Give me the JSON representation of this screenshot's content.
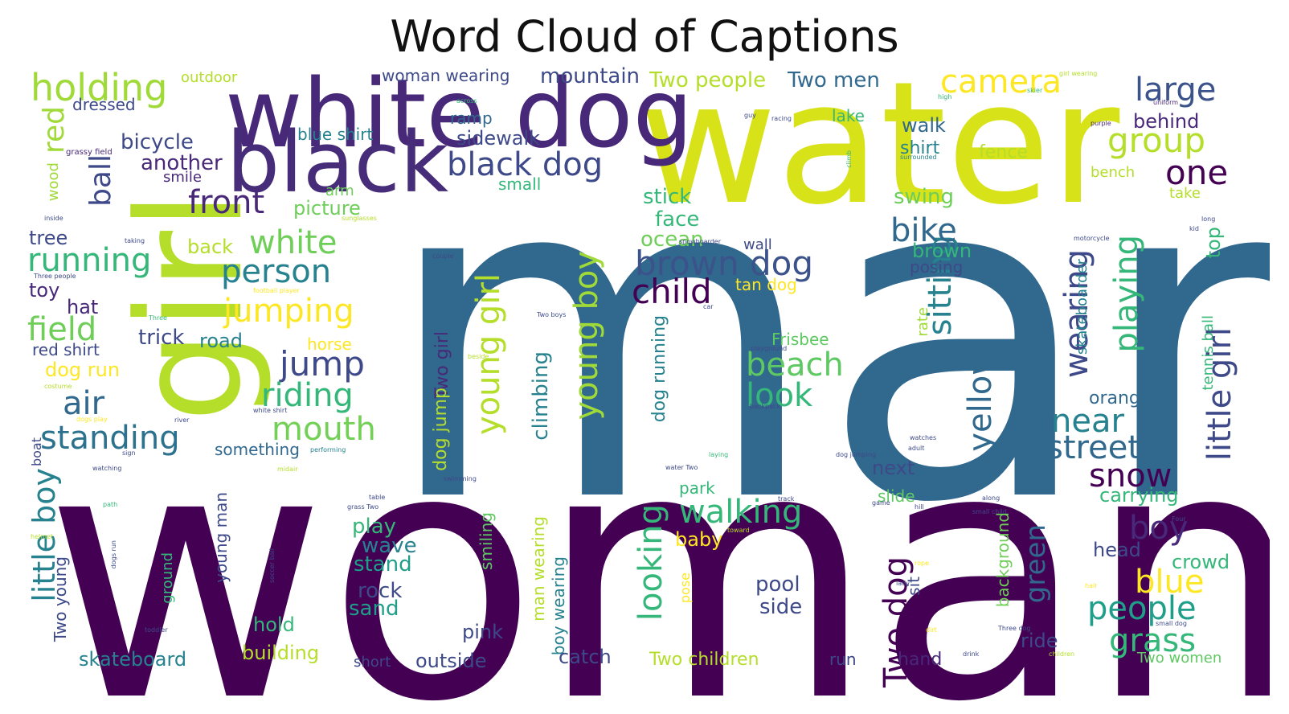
{
  "title": "Word Cloud of Captions",
  "palette": [
    "#440154",
    "#482878",
    "#3e4989",
    "#31688e",
    "#26828e",
    "#1f9e89",
    "#35b779",
    "#6ece58",
    "#b5de2b",
    "#fde725"
  ],
  "words": [
    {
      "text": "man",
      "color": "#31688e"
    },
    {
      "text": "woman",
      "color": "#440154"
    },
    {
      "text": "water",
      "color": "#d8e219"
    },
    {
      "text": "girl",
      "color": "#b5de2b"
    },
    {
      "text": "white dog",
      "color": "#482878"
    },
    {
      "text": "black",
      "color": "#472c7a"
    },
    {
      "text": "holding",
      "color": "#a0da39"
    },
    {
      "text": "camera",
      "color": "#fde725"
    },
    {
      "text": "large",
      "color": "#3b528b"
    },
    {
      "text": "group",
      "color": "#b5de2b"
    },
    {
      "text": "one",
      "color": "#440154"
    },
    {
      "text": "black dog",
      "color": "#3e4989"
    },
    {
      "text": "front",
      "color": "#482878"
    },
    {
      "text": "white",
      "color": "#6ece58"
    },
    {
      "text": "running",
      "color": "#35b779"
    },
    {
      "text": "person",
      "color": "#26828e"
    },
    {
      "text": "jumping",
      "color": "#fde725"
    },
    {
      "text": "brown dog",
      "color": "#3b528b"
    },
    {
      "text": "child",
      "color": "#440154"
    },
    {
      "text": "field",
      "color": "#6ece58"
    },
    {
      "text": "air",
      "color": "#31688e"
    },
    {
      "text": "jump",
      "color": "#3e4989"
    },
    {
      "text": "riding",
      "color": "#35b779"
    },
    {
      "text": "standing",
      "color": "#2c728e"
    },
    {
      "text": "mouth",
      "color": "#73d056"
    },
    {
      "text": "beach",
      "color": "#5ec962"
    },
    {
      "text": "look",
      "color": "#35b779"
    },
    {
      "text": "sitting",
      "color": "#26828e"
    },
    {
      "text": "yellow",
      "color": "#31688e"
    },
    {
      "text": "playing",
      "color": "#35b779"
    },
    {
      "text": "wearing",
      "color": "#3e4989"
    },
    {
      "text": "near",
      "color": "#26828e"
    },
    {
      "text": "street",
      "color": "#31688e"
    },
    {
      "text": "snow",
      "color": "#440154"
    },
    {
      "text": "boy",
      "color": "#482878"
    },
    {
      "text": "blue",
      "color": "#fde725"
    },
    {
      "text": "people",
      "color": "#1f9e89"
    },
    {
      "text": "grass",
      "color": "#35b779"
    },
    {
      "text": "walking",
      "color": "#35b779"
    },
    {
      "text": "looking",
      "color": "#35b779"
    },
    {
      "text": "young boy",
      "color": "#a0da39"
    },
    {
      "text": "young girl",
      "color": "#b5de2b"
    },
    {
      "text": "little boy",
      "color": "#26828e"
    },
    {
      "text": "little girl",
      "color": "#3e4989"
    },
    {
      "text": "Two dog",
      "color": "#440154"
    },
    {
      "text": "bike",
      "color": "#31688e"
    },
    {
      "text": "ball",
      "color": "#3e4989"
    },
    {
      "text": "red",
      "color": "#a0da39"
    },
    {
      "text": "bicycle",
      "color": "#3e4989"
    },
    {
      "text": "another",
      "color": "#482878"
    },
    {
      "text": "mountain",
      "color": "#3e4989"
    },
    {
      "text": "Two people",
      "color": "#b5de2b"
    },
    {
      "text": "Two men",
      "color": "#31688e"
    },
    {
      "text": "sidewalk",
      "color": "#3e4989"
    },
    {
      "text": "picture",
      "color": "#6ece58"
    },
    {
      "text": "face",
      "color": "#35b779"
    },
    {
      "text": "stick",
      "color": "#35b779"
    },
    {
      "text": "ocean",
      "color": "#6ece58"
    },
    {
      "text": "swing",
      "color": "#6ece58"
    },
    {
      "text": "walk",
      "color": "#31688e"
    },
    {
      "text": "shirt",
      "color": "#26828e"
    },
    {
      "text": "fence",
      "color": "#b5de2b"
    },
    {
      "text": "behind",
      "color": "#482878"
    },
    {
      "text": "brown",
      "color": "#35b779"
    },
    {
      "text": "posing",
      "color": "#3e4989"
    },
    {
      "text": "top",
      "color": "#35b779"
    },
    {
      "text": "tree",
      "color": "#3e4989"
    },
    {
      "text": "toy",
      "color": "#482878"
    },
    {
      "text": "hat",
      "color": "#482878"
    },
    {
      "text": "back",
      "color": "#b5de2b"
    },
    {
      "text": "trick",
      "color": "#3e4989"
    },
    {
      "text": "road",
      "color": "#26828e"
    },
    {
      "text": "red shirt",
      "color": "#3e4989"
    },
    {
      "text": "dog run",
      "color": "#fde725"
    },
    {
      "text": "horse",
      "color": "#fde725"
    },
    {
      "text": "blue shirt",
      "color": "#26828e"
    },
    {
      "text": "woman wearing",
      "color": "#3e4989"
    },
    {
      "text": "dressed",
      "color": "#3e4989"
    },
    {
      "text": "smile",
      "color": "#482878"
    },
    {
      "text": "ramp",
      "color": "#31688e"
    },
    {
      "text": "small",
      "color": "#35b779"
    },
    {
      "text": "arm",
      "color": "#6ece58"
    },
    {
      "text": "outdoor",
      "color": "#b5de2b"
    },
    {
      "text": "lake",
      "color": "#35b779"
    },
    {
      "text": "bench",
      "color": "#b5de2b"
    },
    {
      "text": "take",
      "color": "#b5de2b"
    },
    {
      "text": "wood",
      "color": "#a0da39"
    },
    {
      "text": "grassy field",
      "color": "#482878"
    },
    {
      "text": "wall",
      "color": "#3e4989"
    },
    {
      "text": "tan dog",
      "color": "#fde725"
    },
    {
      "text": "Frisbee",
      "color": "#5ec962"
    },
    {
      "text": "rate",
      "color": "#a0da39"
    },
    {
      "text": "around",
      "color": "#31688e"
    },
    {
      "text": "skateboarder",
      "color": "#26828e"
    },
    {
      "text": "orange",
      "color": "#31688e"
    },
    {
      "text": "tennis ball",
      "color": "#35b779"
    },
    {
      "text": "Two girl",
      "color": "#482878"
    },
    {
      "text": "dog jump",
      "color": "#b5de2b"
    },
    {
      "text": "climbing",
      "color": "#26828e"
    },
    {
      "text": "dog running",
      "color": "#26828e"
    },
    {
      "text": "something",
      "color": "#31688e"
    },
    {
      "text": "young man",
      "color": "#3e4989"
    },
    {
      "text": "boat",
      "color": "#3e4989"
    },
    {
      "text": "next",
      "color": "#3e4989"
    },
    {
      "text": "park",
      "color": "#35b779"
    },
    {
      "text": "slide",
      "color": "#5ec962"
    },
    {
      "text": "carrying",
      "color": "#35b779"
    },
    {
      "text": "play",
      "color": "#35b779"
    },
    {
      "text": "wave",
      "color": "#26828e"
    },
    {
      "text": "stand",
      "color": "#1f9e89"
    },
    {
      "text": "rock",
      "color": "#3e4989"
    },
    {
      "text": "sand",
      "color": "#1f9e89"
    },
    {
      "text": "smiling",
      "color": "#5ec962"
    },
    {
      "text": "man wearing",
      "color": "#b5de2b"
    },
    {
      "text": "boy wearing",
      "color": "#26828e"
    },
    {
      "text": "baby",
      "color": "#fde725"
    },
    {
      "text": "pose",
      "color": "#fde725"
    },
    {
      "text": "pool",
      "color": "#3e4989"
    },
    {
      "text": "side",
      "color": "#3e4989"
    },
    {
      "text": "sit",
      "color": "#3e4989"
    },
    {
      "text": "background",
      "color": "#6ece58"
    },
    {
      "text": "green",
      "color": "#31688e"
    },
    {
      "text": "head",
      "color": "#3e4989"
    },
    {
      "text": "crowd",
      "color": "#35b779"
    },
    {
      "text": "hold",
      "color": "#35b779"
    },
    {
      "text": "building",
      "color": "#b5de2b"
    },
    {
      "text": "pink",
      "color": "#3e4989"
    },
    {
      "text": "catch",
      "color": "#3e4989"
    },
    {
      "text": "short",
      "color": "#3e4989"
    },
    {
      "text": "outside",
      "color": "#3e4989"
    },
    {
      "text": "skateboard",
      "color": "#26828e"
    },
    {
      "text": "Two children",
      "color": "#b5de2b"
    },
    {
      "text": "run",
      "color": "#3e4989"
    },
    {
      "text": "hand",
      "color": "#482878"
    },
    {
      "text": "ride",
      "color": "#3e4989"
    },
    {
      "text": "Two women",
      "color": "#5ec962"
    },
    {
      "text": "Two young",
      "color": "#3e4989"
    },
    {
      "text": "ground",
      "color": "#35b779"
    },
    {
      "text": "girl wearing",
      "color": "#b5de2b"
    },
    {
      "text": "across",
      "color": "#35b779"
    },
    {
      "text": "high",
      "color": "#35b779"
    },
    {
      "text": "skier",
      "color": "#35b779"
    },
    {
      "text": "uniform",
      "color": "#482878"
    },
    {
      "text": "purple",
      "color": "#482878"
    },
    {
      "text": "guy",
      "color": "#3e4989"
    },
    {
      "text": "racing",
      "color": "#3e4989"
    },
    {
      "text": "surrounded",
      "color": "#26828e"
    },
    {
      "text": "climb",
      "color": "#35b779"
    },
    {
      "text": "inside",
      "color": "#3e4989"
    },
    {
      "text": "sunglasses",
      "color": "#b5de2b"
    },
    {
      "text": "taking",
      "color": "#3e4989"
    },
    {
      "text": "couple",
      "color": "#3e4989"
    },
    {
      "text": "snowboarder",
      "color": "#3e4989"
    },
    {
      "text": "motorcycle",
      "color": "#3e4989"
    },
    {
      "text": "kid",
      "color": "#3e4989"
    },
    {
      "text": "long",
      "color": "#3e4989"
    },
    {
      "text": "Three people",
      "color": "#3e4989"
    },
    {
      "text": "football player",
      "color": "#fde725"
    },
    {
      "text": "Three",
      "color": "#35b779"
    },
    {
      "text": "car",
      "color": "#3e4989"
    },
    {
      "text": "Two boys",
      "color": "#3e4989"
    },
    {
      "text": "beside",
      "color": "#b5de2b"
    },
    {
      "text": "playground",
      "color": "#3e4989"
    },
    {
      "text": "costume",
      "color": "#b5de2b"
    },
    {
      "text": "white shirt",
      "color": "#3e4989"
    },
    {
      "text": "backpack",
      "color": "#3e4989"
    },
    {
      "text": "dogs play",
      "color": "#fde725"
    },
    {
      "text": "river",
      "color": "#3e4989"
    },
    {
      "text": "watches",
      "color": "#3e4989"
    },
    {
      "text": "performing",
      "color": "#26828e"
    },
    {
      "text": "adult",
      "color": "#3e4989"
    },
    {
      "text": "sign",
      "color": "#3e4989"
    },
    {
      "text": "midair",
      "color": "#b5de2b"
    },
    {
      "text": "laying",
      "color": "#35b779"
    },
    {
      "text": "dog jumping",
      "color": "#3e4989"
    },
    {
      "text": "watching",
      "color": "#3e4989"
    },
    {
      "text": "swimming",
      "color": "#3e4989"
    },
    {
      "text": "water Two",
      "color": "#3e4989"
    },
    {
      "text": "path",
      "color": "#35b779"
    },
    {
      "text": "table",
      "color": "#3e4989"
    },
    {
      "text": "grass Two",
      "color": "#3e4989"
    },
    {
      "text": "track",
      "color": "#3e4989"
    },
    {
      "text": "along",
      "color": "#3e4989"
    },
    {
      "text": "game",
      "color": "#3e4989"
    },
    {
      "text": "hill",
      "color": "#3e4989"
    },
    {
      "text": "small child",
      "color": "#3e4989"
    },
    {
      "text": "Four",
      "color": "#3e4989"
    },
    {
      "text": "helmet",
      "color": "#b5de2b"
    },
    {
      "text": "dogs run",
      "color": "#3e4989"
    },
    {
      "text": "soccer ball",
      "color": "#3e4989"
    },
    {
      "text": "toward",
      "color": "#b5de2b"
    },
    {
      "text": "rope",
      "color": "#fde725"
    },
    {
      "text": "lady",
      "color": "#3e4989"
    },
    {
      "text": "hair",
      "color": "#fde725"
    },
    {
      "text": "dirt",
      "color": "#fde725"
    },
    {
      "text": "toddler",
      "color": "#3e4989"
    },
    {
      "text": "Three dog",
      "color": "#3e4989"
    },
    {
      "text": "small dog",
      "color": "#3e4989"
    },
    {
      "text": "drink",
      "color": "#3e4989"
    },
    {
      "text": "children",
      "color": "#b5de2b"
    }
  ]
}
